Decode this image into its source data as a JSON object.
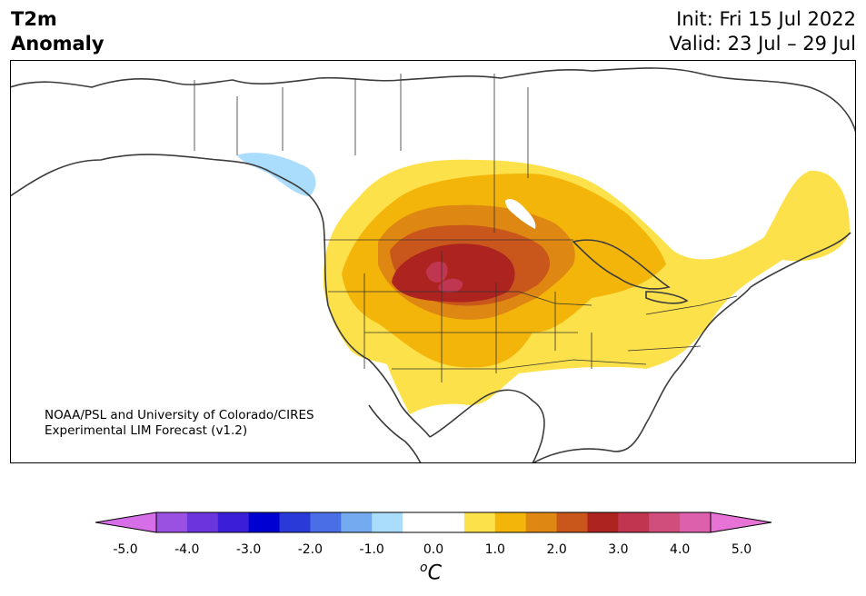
{
  "header": {
    "title_line1": "T2m",
    "title_line2": "Anomaly",
    "init": "Init: Fri 15 Jul 2022",
    "valid": "Valid: 23 Jul – 29 Jul"
  },
  "credit": {
    "line1": "NOAA/PSL and University of Colorado/CIRES",
    "line2": "Experimental LIM Forecast (v1.2)"
  },
  "colorbar": {
    "unit_sup": "o",
    "unit": "C",
    "ticks": [
      "-5.0",
      "-4.0",
      "-3.0",
      "-2.0",
      "-1.0",
      "0.0",
      "1.0",
      "2.0",
      "3.0",
      "4.0",
      "5.0"
    ],
    "colors": [
      "#d66ee8",
      "#9a50e0",
      "#6a35dd",
      "#3b1fd8",
      "#0000d0",
      "#2a3ad8",
      "#4a6ee6",
      "#74aaf0",
      "#aadcfb",
      "#ffffff",
      "#ffffff",
      "#fde14a",
      "#f3b50a",
      "#de8712",
      "#c9561a",
      "#ad2320",
      "#c03650",
      "#d04e7c",
      "#dc60ac",
      "#e873d6"
    ]
  }
}
